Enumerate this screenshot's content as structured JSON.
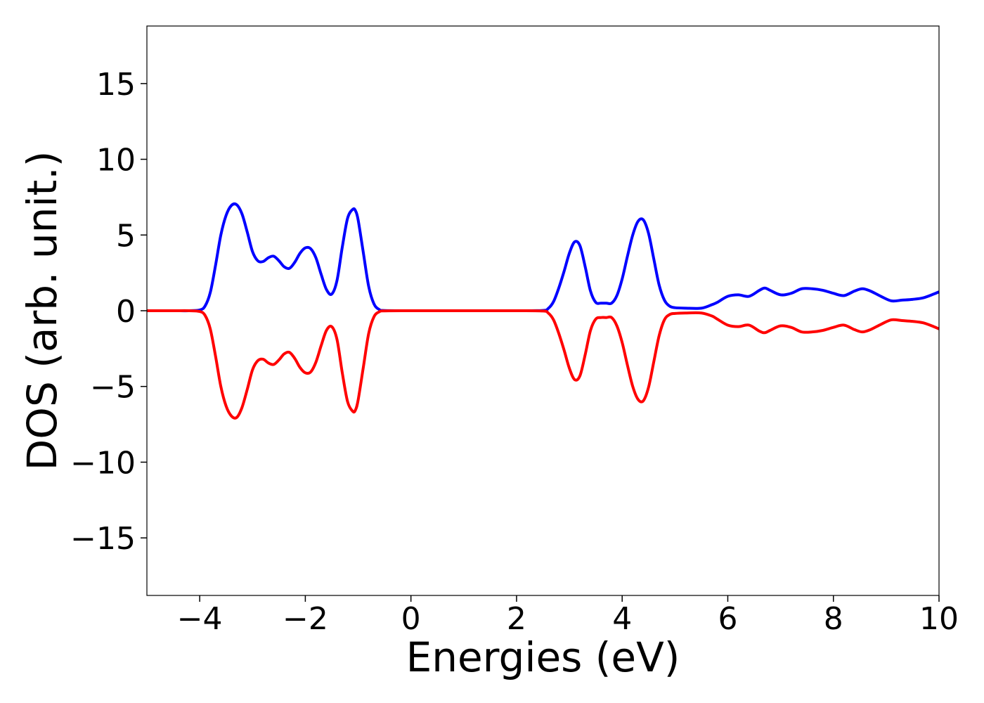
{
  "chart_data": {
    "type": "line",
    "title": "",
    "xlabel": "Energies (eV)",
    "ylabel": "DOS (arb. unit.)",
    "xlim": [
      -5,
      10
    ],
    "ylim": [
      -18.8,
      18.8
    ],
    "grid": false,
    "legend": "none",
    "xticks": [
      {
        "value": -4,
        "label": "−4"
      },
      {
        "value": -2,
        "label": "−2"
      },
      {
        "value": 0,
        "label": "0"
      },
      {
        "value": 2,
        "label": "2"
      },
      {
        "value": 4,
        "label": "4"
      },
      {
        "value": 6,
        "label": "6"
      },
      {
        "value": 8,
        "label": "8"
      },
      {
        "value": 10,
        "label": "10"
      }
    ],
    "yticks": [
      {
        "value": 15,
        "label": "15"
      },
      {
        "value": 10,
        "label": "10"
      },
      {
        "value": 5,
        "label": "5"
      },
      {
        "value": 0,
        "label": "0"
      },
      {
        "value": -5,
        "label": "−5"
      },
      {
        "value": -10,
        "label": "−10"
      },
      {
        "value": -15,
        "label": "−15"
      }
    ],
    "series": [
      {
        "color": "#0000ff",
        "x": [
          -5.0,
          -4.5,
          -4.2,
          -4.0,
          -3.9,
          -3.8,
          -3.7,
          -3.6,
          -3.5,
          -3.4,
          -3.3,
          -3.2,
          -3.1,
          -3.0,
          -2.9,
          -2.8,
          -2.7,
          -2.6,
          -2.5,
          -2.4,
          -2.3,
          -2.2,
          -2.1,
          -2.0,
          -1.9,
          -1.8,
          -1.7,
          -1.6,
          -1.5,
          -1.4,
          -1.3,
          -1.2,
          -1.1,
          -1.05,
          -1.0,
          -0.9,
          -0.8,
          -0.7,
          -0.6,
          -0.5,
          0.0,
          1.0,
          2.0,
          2.5,
          2.6,
          2.7,
          2.8,
          2.9,
          3.0,
          3.1,
          3.2,
          3.3,
          3.4,
          3.5,
          3.6,
          3.7,
          3.8,
          3.9,
          4.0,
          4.1,
          4.2,
          4.3,
          4.4,
          4.5,
          4.6,
          4.7,
          4.8,
          4.9,
          5.0,
          5.2,
          5.5,
          5.7,
          5.8,
          6.0,
          6.2,
          6.4,
          6.6,
          6.7,
          6.8,
          7.0,
          7.2,
          7.4,
          7.6,
          7.8,
          8.0,
          8.2,
          8.4,
          8.55,
          8.7,
          8.9,
          9.1,
          9.3,
          9.5,
          9.7,
          9.9,
          10.0
        ],
        "y": [
          0.0,
          0.0,
          0.0,
          0.05,
          0.3,
          1.2,
          3.0,
          5.0,
          6.3,
          6.95,
          7.0,
          6.4,
          5.2,
          3.9,
          3.3,
          3.25,
          3.5,
          3.6,
          3.3,
          2.9,
          2.8,
          3.2,
          3.8,
          4.15,
          4.1,
          3.5,
          2.4,
          1.4,
          1.1,
          2.0,
          4.2,
          6.1,
          6.7,
          6.6,
          6.0,
          3.8,
          1.6,
          0.45,
          0.08,
          0.01,
          0.0,
          0.0,
          0.0,
          0.02,
          0.15,
          0.6,
          1.5,
          2.6,
          3.8,
          4.55,
          4.3,
          2.9,
          1.3,
          0.55,
          0.5,
          0.5,
          0.5,
          1.0,
          2.1,
          3.6,
          5.0,
          5.9,
          6.0,
          5.1,
          3.4,
          1.7,
          0.7,
          0.3,
          0.2,
          0.17,
          0.17,
          0.4,
          0.55,
          0.95,
          1.05,
          0.95,
          1.35,
          1.5,
          1.35,
          1.05,
          1.15,
          1.45,
          1.45,
          1.35,
          1.15,
          1.0,
          1.3,
          1.45,
          1.3,
          0.95,
          0.65,
          0.7,
          0.75,
          0.85,
          1.1,
          1.25
        ]
      },
      {
        "color": "#ff0000",
        "x": [
          -5.0,
          -4.5,
          -4.2,
          -4.0,
          -3.9,
          -3.8,
          -3.7,
          -3.6,
          -3.5,
          -3.4,
          -3.3,
          -3.2,
          -3.1,
          -3.0,
          -2.9,
          -2.8,
          -2.7,
          -2.6,
          -2.5,
          -2.4,
          -2.3,
          -2.2,
          -2.1,
          -2.0,
          -1.9,
          -1.8,
          -1.7,
          -1.6,
          -1.5,
          -1.4,
          -1.3,
          -1.2,
          -1.1,
          -1.05,
          -1.0,
          -0.9,
          -0.8,
          -0.7,
          -0.6,
          -0.5,
          0.0,
          1.0,
          2.0,
          2.5,
          2.6,
          2.7,
          2.8,
          2.9,
          3.0,
          3.1,
          3.2,
          3.3,
          3.4,
          3.5,
          3.6,
          3.7,
          3.8,
          3.9,
          4.0,
          4.1,
          4.2,
          4.3,
          4.4,
          4.5,
          4.6,
          4.7,
          4.8,
          4.9,
          5.0,
          5.2,
          5.5,
          5.7,
          5.8,
          6.0,
          6.2,
          6.4,
          6.6,
          6.7,
          6.8,
          7.0,
          7.2,
          7.4,
          7.6,
          7.8,
          8.0,
          8.2,
          8.4,
          8.55,
          8.7,
          8.9,
          9.1,
          9.3,
          9.5,
          9.7,
          9.9,
          10.0
        ],
        "y": [
          0.0,
          0.0,
          0.0,
          -0.05,
          -0.3,
          -1.2,
          -3.0,
          -5.0,
          -6.3,
          -6.95,
          -7.05,
          -6.4,
          -5.2,
          -3.9,
          -3.3,
          -3.2,
          -3.45,
          -3.55,
          -3.25,
          -2.85,
          -2.75,
          -3.15,
          -3.75,
          -4.1,
          -4.05,
          -3.4,
          -2.3,
          -1.3,
          -1.05,
          -1.9,
          -4.1,
          -6.0,
          -6.65,
          -6.55,
          -5.9,
          -3.7,
          -1.5,
          -0.4,
          -0.07,
          -0.01,
          0.0,
          0.0,
          0.0,
          -0.02,
          -0.15,
          -0.6,
          -1.5,
          -2.6,
          -3.8,
          -4.55,
          -4.3,
          -2.9,
          -1.3,
          -0.55,
          -0.45,
          -0.45,
          -0.45,
          -1.0,
          -2.1,
          -3.6,
          -5.0,
          -5.85,
          -5.95,
          -5.05,
          -3.35,
          -1.65,
          -0.6,
          -0.25,
          -0.18,
          -0.15,
          -0.15,
          -0.35,
          -0.55,
          -0.95,
          -1.05,
          -0.95,
          -1.35,
          -1.45,
          -1.3,
          -1.0,
          -1.1,
          -1.4,
          -1.4,
          -1.3,
          -1.1,
          -0.95,
          -1.25,
          -1.4,
          -1.25,
          -0.9,
          -0.6,
          -0.65,
          -0.7,
          -0.8,
          -1.05,
          -1.2
        ]
      }
    ]
  }
}
